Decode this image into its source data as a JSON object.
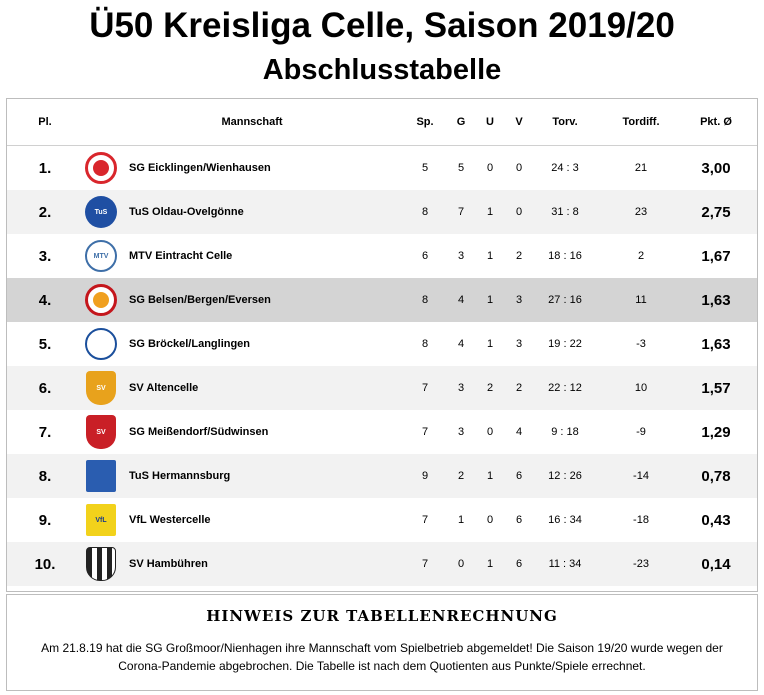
{
  "title": "Ü50 Kreisliga Celle, Saison 2019/20",
  "subtitle": "Abschlusstabelle",
  "headers": {
    "pl": "Pl.",
    "mannschaft": "Mannschaft",
    "sp": "Sp.",
    "g": "G",
    "u": "U",
    "v": "V",
    "torv": "Torv.",
    "tordiff": "Tordiff.",
    "pkt": "Pkt. Ø"
  },
  "rows": [
    {
      "pl": "1.",
      "team": "SG Eicklingen/Wienhausen",
      "sp": "5",
      "g": "5",
      "u": "0",
      "v": "0",
      "torv": "24 : 3",
      "diff": "21",
      "pkt": "3,00",
      "logo": "eicklingen-crest-icon",
      "logo_color": "#d9262c"
    },
    {
      "pl": "2.",
      "team": "TuS Oldau-Ovelgönne",
      "sp": "8",
      "g": "7",
      "u": "1",
      "v": "0",
      "torv": "31 : 8",
      "diff": "23",
      "pkt": "2,75",
      "logo": "tus-oldau-crest-icon",
      "logo_color": "#1f4fa3",
      "logo_text": "TuS"
    },
    {
      "pl": "3.",
      "team": "MTV Eintracht Celle",
      "sp": "6",
      "g": "3",
      "u": "1",
      "v": "2",
      "torv": "18 : 16",
      "diff": "2",
      "pkt": "1,67",
      "logo": "mtv-celle-crest-icon",
      "logo_color": "#3e6fa8",
      "logo_text": "MTV"
    },
    {
      "pl": "4.",
      "team": "SG Belsen/Bergen/Eversen",
      "sp": "8",
      "g": "4",
      "u": "1",
      "v": "3",
      "torv": "27 : 16",
      "diff": "11",
      "pkt": "1,63",
      "logo": "sg-belsen-crest-icon",
      "logo_color": "#c4161c"
    },
    {
      "pl": "5.",
      "team": "SG Bröckel/Langlingen",
      "sp": "8",
      "g": "4",
      "u": "1",
      "v": "3",
      "torv": "19 : 22",
      "diff": "-3",
      "pkt": "1,63",
      "logo": "sg-broeckel-crest-icon",
      "logo_color": "#1b4f9c"
    },
    {
      "pl": "6.",
      "team": "SV Altencelle",
      "sp": "7",
      "g": "3",
      "u": "2",
      "v": "2",
      "torv": "22 : 12",
      "diff": "10",
      "pkt": "1,57",
      "logo": "sv-altencelle-crest-icon",
      "logo_color": "#e8a21c",
      "logo_text": "SV"
    },
    {
      "pl": "7.",
      "team": "SG Meißendorf/Südwinsen",
      "sp": "7",
      "g": "3",
      "u": "0",
      "v": "4",
      "torv": "9 : 18",
      "diff": "-9",
      "pkt": "1,29",
      "logo": "sg-meissendorf-crest-icon",
      "logo_color": "#c91f26",
      "logo_text": "SV"
    },
    {
      "pl": "8.",
      "team": "TuS Hermannsburg",
      "sp": "9",
      "g": "2",
      "u": "1",
      "v": "6",
      "torv": "12 : 26",
      "diff": "-14",
      "pkt": "0,78",
      "logo": "tus-hermannsburg-crest-icon",
      "logo_color": "#2a5db0"
    },
    {
      "pl": "9.",
      "team": "VfL Westercelle",
      "sp": "7",
      "g": "1",
      "u": "0",
      "v": "6",
      "torv": "16 : 34",
      "diff": "-18",
      "pkt": "0,43",
      "logo": "vfl-westercelle-crest-icon",
      "logo_color": "#f2d21b",
      "logo_text": "VfL"
    },
    {
      "pl": "10.",
      "team": "SV Hambühren",
      "sp": "7",
      "g": "0",
      "u": "1",
      "v": "6",
      "torv": "11 : 34",
      "diff": "-23",
      "pkt": "0,14",
      "logo": "sv-hambuehren-crest-icon",
      "logo_color": "#222222"
    }
  ],
  "highlight_row": 4,
  "note": {
    "title": "HINWEIS ZUR TABELLENRECHNUNG",
    "text": "Am 21.8.19 hat die SG Großmoor/Nienhagen ihre Mannschaft vom Spielbetrieb abgemeldet! Die Saison 19/20 wurde wegen der Corona-Pandemie abgebrochen. Die Tabelle ist nach dem Quotienten aus Punkte/Spiele errechnet."
  }
}
